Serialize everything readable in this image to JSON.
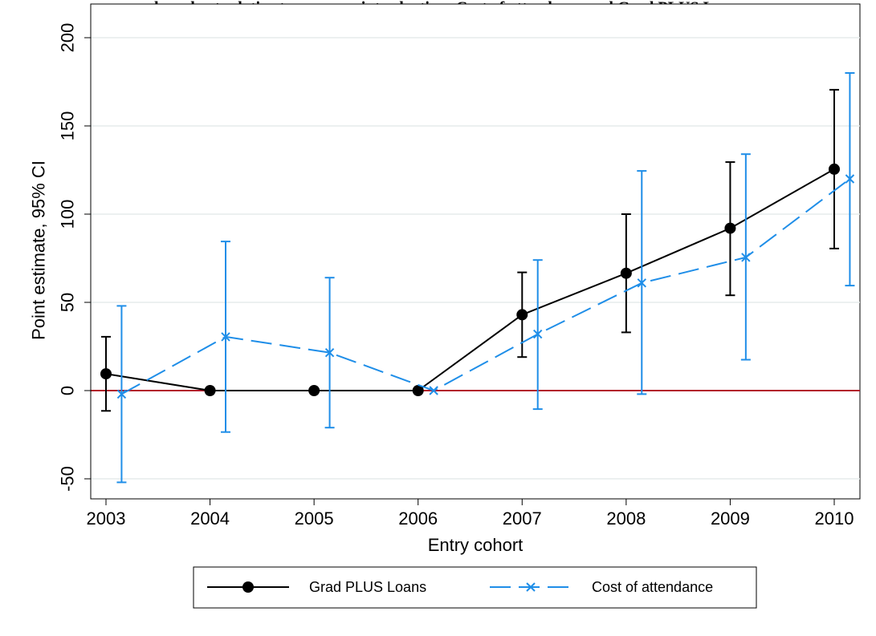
{
  "chart_data": {
    "type": "line",
    "title": "",
    "title_visible_fragment": "by cohort relative to program introduction: Cost of attendance and Grad PLUS Loans",
    "xlabel": "Entry cohort",
    "ylabel": "Point estimate, 95% CI",
    "categories": [
      "2003",
      "2004",
      "2005",
      "2006",
      "2007",
      "2008",
      "2009",
      "2010"
    ],
    "ylim": [
      -60,
      205
    ],
    "yticks": [
      -50,
      0,
      50,
      100,
      150,
      200
    ],
    "ytick_labels": [
      "-50",
      "0",
      "50",
      "100",
      "150",
      "200"
    ],
    "grid": true,
    "reference_line": {
      "y": 0,
      "color": "#b2182b"
    },
    "legend_position": "bottom",
    "series": [
      {
        "name": "Grad PLUS Loans",
        "color": "#000000",
        "marker": "circle",
        "line_style": "solid",
        "offset": 0,
        "values": [
          9.5,
          0,
          0,
          0,
          43,
          66.5,
          92,
          125.5
        ],
        "ci_lower": [
          -11.5,
          null,
          null,
          null,
          19,
          33,
          54,
          80.5
        ],
        "ci_upper": [
          30.5,
          null,
          null,
          null,
          67,
          100,
          129.5,
          170.5
        ]
      },
      {
        "name": "Cost of attendance",
        "color": "#1f8ee8",
        "marker": "x",
        "line_style": "dashed",
        "offset": 0.15,
        "values": [
          -2,
          30.5,
          21.5,
          0,
          32,
          61,
          75.5,
          120
        ],
        "ci_lower": [
          -52,
          -23.5,
          -21,
          null,
          -10.5,
          -2,
          17.5,
          59.5
        ],
        "ci_upper": [
          48,
          84.5,
          64,
          null,
          74,
          124.5,
          134,
          180
        ]
      }
    ]
  }
}
